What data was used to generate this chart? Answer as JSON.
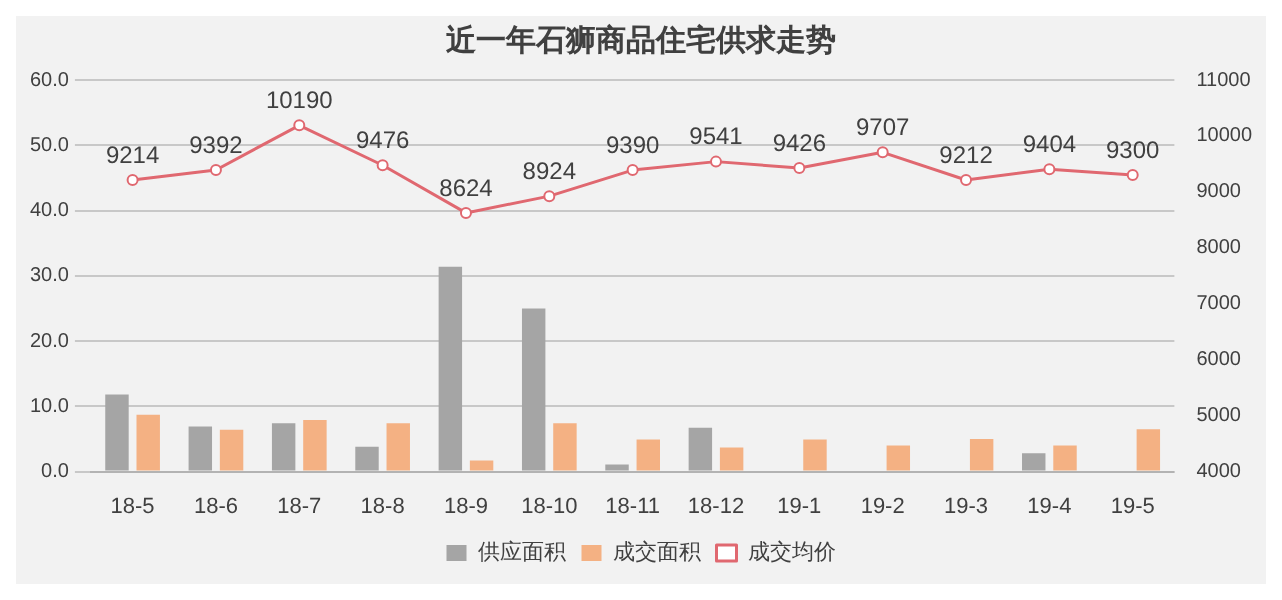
{
  "chart_data": {
    "type": "bar",
    "title": "近一年石狮商品住宅供求走势",
    "categories": [
      "18-5",
      "18-6",
      "18-7",
      "18-8",
      "18-9",
      "18-10",
      "18-11",
      "18-12",
      "19-1",
      "19-2",
      "19-3",
      "19-4",
      "19-5"
    ],
    "series": [
      {
        "name": "供应面积",
        "color": "#a5a5a5",
        "values": [
          11.8,
          6.9,
          7.4,
          3.8,
          31.4,
          25.0,
          1.1,
          6.7,
          null,
          null,
          null,
          2.8,
          null
        ]
      },
      {
        "name": "成交面积",
        "color": "#f4b183",
        "values": [
          8.7,
          6.4,
          7.9,
          7.4,
          1.7,
          7.4,
          4.9,
          3.7,
          4.9,
          4.0,
          5.0,
          4.0,
          6.5
        ]
      },
      {
        "name": "成交均价",
        "type": "line",
        "axis": "y2",
        "color": "#e06870",
        "marker": "circle",
        "values": [
          9214,
          9392,
          10190,
          9476,
          8624,
          8924,
          9390,
          9541,
          9426,
          9707,
          9212,
          9404,
          9300
        ],
        "value_labels": [
          "9214",
          "9392",
          "10190",
          "9476",
          "8624",
          "8924",
          "9390",
          "9541",
          "9426",
          "9707",
          "9212",
          "9404",
          "9300"
        ]
      }
    ],
    "ylim": [
      0,
      60
    ],
    "yticks": [
      {
        "value": 0,
        "label": "0.0"
      },
      {
        "value": 10,
        "label": "10.0"
      },
      {
        "value": 20,
        "label": "20.0"
      },
      {
        "value": 30,
        "label": "30.0"
      },
      {
        "value": 40,
        "label": "40.0"
      },
      {
        "value": 50,
        "label": "50.0"
      },
      {
        "value": 60,
        "label": "60.0"
      }
    ],
    "y2lim": [
      4000,
      11000
    ],
    "y2ticks": [
      4000,
      5000,
      6000,
      7000,
      8000,
      9000,
      10000,
      11000
    ],
    "grid": "y",
    "legend": "bottom"
  }
}
